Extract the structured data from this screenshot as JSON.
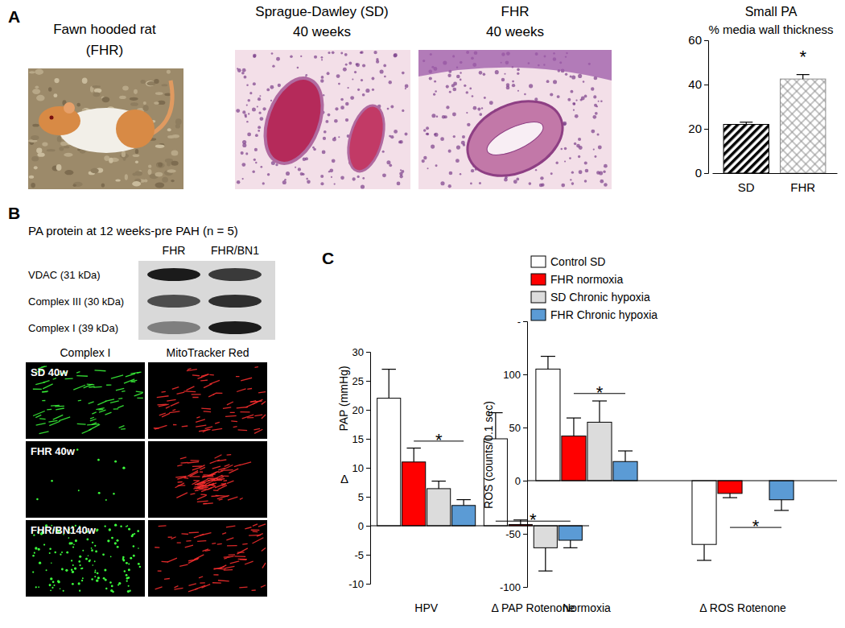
{
  "figure": {
    "panel_labels": [
      "A",
      "B",
      "C"
    ],
    "panel_a": {
      "images": [
        {
          "title": "Fawn hooded rat",
          "subtitle": "(FHR)"
        },
        {
          "title": "Sprague-Dawley (SD)",
          "subtitle": "40 weeks"
        },
        {
          "title": "FHR",
          "subtitle": "40 weeks"
        }
      ]
    },
    "panel_b": {
      "blot_title": "PA protein at 12 weeks-pre PAH (n = 5)",
      "lanes": [
        "FHR",
        "FHR/BN1"
      ],
      "bands": [
        "VDAC (31 kDa)",
        "Complex III (30 kDa)",
        "Complex I (39 kDa)"
      ],
      "stain_columns": [
        "Complex I",
        "MitoTracker Red"
      ],
      "stain_rows": [
        "SD 40w",
        "FHR 40w",
        "FHR/BN140w"
      ]
    }
  },
  "chart_data": [
    {
      "type": "bar",
      "title": "Small PA",
      "subtitle": "% media wall thickness",
      "categories": [
        "SD",
        "FHR"
      ],
      "values": [
        22,
        42.5
      ],
      "errors": [
        1,
        2
      ],
      "colors": [
        "#000000",
        "#8c8c8c"
      ],
      "ylim": [
        0,
        60
      ],
      "yticks": [
        0,
        20,
        40,
        60
      ],
      "annotations": [
        {
          "text": "*",
          "y": 50,
          "category": 1
        }
      ]
    },
    {
      "type": "bar",
      "ylabel": "PAP (mmHg)",
      "ylabel_symbol": "Δ",
      "categories": [
        "HPV",
        "Δ PAP Rotenone"
      ],
      "series": [
        {
          "name": "Control SD",
          "color": "#ffffff",
          "values": [
            22,
            15
          ],
          "errors": [
            5,
            4.5
          ]
        },
        {
          "name": "FHR normoxia",
          "color": "#ff0000",
          "values": [
            11,
            0.2
          ],
          "errors": [
            2.4,
            0.8
          ]
        },
        {
          "name": "SD Chronic hypoxia",
          "color": "#dcdcdc",
          "values": [
            6.4,
            -3.8
          ],
          "errors": [
            1.3,
            4
          ]
        },
        {
          "name": "FHR Chronic hypoxia",
          "color": "#5b9bd5",
          "values": [
            3.5,
            -2.5
          ],
          "errors": [
            1,
            1.3
          ]
        }
      ],
      "ylim": [
        -10,
        30
      ],
      "yticks": [
        -10,
        -5,
        0,
        5,
        10,
        15,
        20,
        25,
        30
      ],
      "legend": "top-right",
      "annotations": [
        {
          "text": "*",
          "y": 14.6,
          "category": 0,
          "from": 1,
          "to": 3
        },
        {
          "text": "*",
          "y": 0.8,
          "category": 1,
          "from": 0,
          "to": 3
        }
      ]
    },
    {
      "type": "bar",
      "ylabel": "ROS (counts/0.1 sec)",
      "categories": [
        "Normoxia",
        "Δ ROS Rotenone"
      ],
      "series": [
        {
          "color": "#ffffff",
          "values": [
            105,
            -60
          ],
          "errors": [
            12,
            15
          ]
        },
        {
          "color": "#ff0000",
          "values": [
            42,
            -12
          ],
          "errors": [
            17,
            4
          ]
        },
        {
          "color": "#dcdcdc",
          "values": [
            55,
            null
          ],
          "errors": [
            20,
            null
          ]
        },
        {
          "color": "#5b9bd5",
          "values": [
            18,
            -18
          ],
          "errors": [
            10,
            10
          ]
        }
      ],
      "ylim": [
        -100,
        150
      ],
      "yticks": [
        -100,
        -50,
        0,
        50,
        100,
        {
          "value": 150,
          "label": "-"
        }
      ],
      "annotations": [
        {
          "text": "*",
          "y": 82,
          "category": 0,
          "from": 1,
          "to": 3
        },
        {
          "text": "*",
          "y": -44,
          "category": 1,
          "from": 1,
          "to": 3
        }
      ]
    }
  ]
}
